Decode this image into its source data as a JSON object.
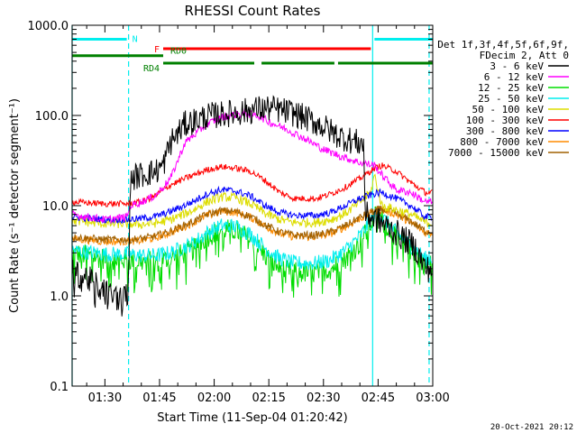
{
  "chart_data": {
    "type": "line",
    "title": "RHESSI Count Rates",
    "xlabel": "Start Time (11-Sep-04 01:20:42)",
    "ylabel": "Count Rate (s⁻¹ detector segment⁻¹)",
    "ylog": true,
    "ylim": [
      0.1,
      1000
    ],
    "xlim_minutes": [
      81,
      180
    ],
    "xticks": [
      {
        "t": 90,
        "label": "01:30"
      },
      {
        "t": 105,
        "label": "01:45"
      },
      {
        "t": 120,
        "label": "02:00"
      },
      {
        "t": 135,
        "label": "02:15"
      },
      {
        "t": 150,
        "label": "02:30"
      },
      {
        "t": 165,
        "label": "02:45"
      },
      {
        "t": 180,
        "label": "03:00"
      }
    ],
    "yticks": [
      {
        "v": 1000,
        "label": "1000.0"
      },
      {
        "v": 100,
        "label": "100.0"
      },
      {
        "v": 10,
        "label": "10.0"
      },
      {
        "v": 1,
        "label": "1.0"
      },
      {
        "v": 0.1,
        "label": "0.1"
      }
    ],
    "timestamp": "20-Oct-2021 20:12",
    "legend": {
      "header": [
        "Det 1f,3f,4f,5f,6f,9f,",
        "FDecim 2, Att 0"
      ],
      "placement": "right"
    },
    "series": [
      {
        "name": "3 - 6 keV",
        "color": "#000000",
        "t": [
          81,
          85,
          90,
          95,
          96.5,
          97,
          100,
          104,
          106,
          108,
          112,
          118,
          124,
          128,
          132,
          135,
          138,
          142,
          146,
          150,
          154,
          158,
          161,
          161.5,
          166,
          170,
          175,
          178
        ],
        "v": [
          1.8,
          1.6,
          1.1,
          0.9,
          1.2,
          20,
          22,
          24,
          28,
          50,
          80,
          98,
          105,
          110,
          118,
          120,
          115,
          105,
          90,
          75,
          60,
          52,
          48,
          8,
          6.5,
          5,
          3.5,
          2
        ]
      },
      {
        "name": "6 - 12 keV",
        "color": "#ff00ff",
        "t": [
          81,
          90,
          96,
          97,
          100,
          104,
          108,
          112,
          118,
          122,
          124,
          128,
          132,
          135,
          140,
          145,
          150,
          155,
          160,
          164,
          166,
          170,
          174,
          178
        ],
        "v": [
          8,
          7,
          7.5,
          10,
          11,
          13,
          20,
          50,
          80,
          95,
          100,
          105,
          100,
          85,
          70,
          55,
          42,
          35,
          30,
          28,
          22,
          15,
          14,
          11
        ]
      },
      {
        "name": "12 - 25 keV",
        "color": "#00dd00",
        "t": [
          81,
          90,
          96,
          100,
          104,
          108,
          114,
          118,
          122,
          126,
          130,
          134,
          138,
          142,
          148,
          152,
          156,
          160,
          164,
          165,
          166,
          170,
          174,
          178
        ],
        "v": [
          3,
          2.6,
          2.5,
          2.4,
          2.4,
          2.6,
          3.2,
          4.5,
          5.5,
          5.3,
          4.2,
          2.8,
          2,
          1.8,
          1.8,
          2,
          2.6,
          3.8,
          7.5,
          8,
          7,
          4.5,
          3.2,
          2.2
        ]
      },
      {
        "name": "25 - 50 keV",
        "color": "#00eeee",
        "t": [
          81,
          90,
          96,
          100,
          104,
          108,
          114,
          118,
          122,
          126,
          130,
          134,
          138,
          142,
          148,
          152,
          156,
          160,
          164,
          165,
          166,
          170,
          174,
          178
        ],
        "v": [
          3.2,
          2.9,
          2.9,
          2.8,
          2.8,
          3,
          3.8,
          5,
          6,
          5.9,
          4.8,
          3.4,
          2.6,
          2.3,
          2.3,
          2.5,
          3.2,
          4.6,
          7.8,
          8.5,
          7.5,
          5,
          3.6,
          2.6
        ]
      },
      {
        "name": "50 - 100 keV",
        "color": "#dddd00",
        "t": [
          81,
          90,
          96,
          100,
          104,
          108,
          114,
          118,
          122,
          126,
          130,
          134,
          138,
          142,
          148,
          152,
          156,
          160,
          163,
          164,
          166,
          170,
          174,
          178
        ],
        "v": [
          6.8,
          6.3,
          6.3,
          6.2,
          6.4,
          7,
          8.8,
          11,
          12.5,
          12.2,
          10.5,
          8.2,
          7,
          6.5,
          6.5,
          7,
          8.2,
          11,
          14,
          22,
          10,
          9,
          8,
          6.5
        ]
      },
      {
        "name": "100 - 300 keV",
        "color": "#ff0000",
        "t": [
          81,
          90,
          96,
          100,
          104,
          108,
          112,
          118,
          122,
          126,
          130,
          134,
          138,
          142,
          148,
          152,
          156,
          160,
          164,
          166,
          170,
          174,
          178
        ],
        "v": [
          11,
          10.5,
          10.5,
          11,
          13,
          17,
          20,
          25,
          27,
          26,
          24,
          19,
          14,
          12,
          12,
          13.5,
          16,
          20,
          26,
          28,
          24,
          18,
          14
        ]
      },
      {
        "name": "300 - 800 keV",
        "color": "#0000ff",
        "t": [
          81,
          90,
          96,
          100,
          104,
          108,
          114,
          118,
          122,
          126,
          130,
          134,
          138,
          142,
          148,
          152,
          156,
          160,
          164,
          166,
          170,
          174,
          178
        ],
        "v": [
          7.5,
          7,
          7,
          7.2,
          7.6,
          8.6,
          11,
          13.5,
          15,
          14.5,
          12.8,
          10,
          8.4,
          7.8,
          7.8,
          8.4,
          10,
          12,
          13.5,
          14,
          12,
          10,
          7.5
        ]
      },
      {
        "name": "800 - 7000 keV",
        "color": "#ff8c00",
        "t": [
          81,
          90,
          96,
          100,
          104,
          108,
          114,
          118,
          122,
          126,
          130,
          134,
          138,
          142,
          148,
          152,
          156,
          160,
          164,
          166,
          170,
          174,
          178
        ],
        "v": [
          4.3,
          4,
          4,
          4.1,
          4.4,
          5,
          6.4,
          7.8,
          8.6,
          8.4,
          7.4,
          5.9,
          4.9,
          4.5,
          4.5,
          4.9,
          5.8,
          7.2,
          8.6,
          9,
          8,
          6.5,
          5
        ]
      },
      {
        "name": "7000 - 15000 keV",
        "color": "#a06000",
        "t": [
          81,
          90,
          96,
          100,
          104,
          108,
          114,
          118,
          122,
          126,
          130,
          134,
          138,
          142,
          148,
          152,
          156,
          160,
          164,
          166,
          170,
          174,
          178
        ],
        "v": [
          4.5,
          4.2,
          4.2,
          4.3,
          4.6,
          5.2,
          6.6,
          8,
          8.8,
          8.6,
          7.6,
          6.1,
          5.1,
          4.7,
          4.7,
          5.1,
          6,
          7.4,
          8.8,
          9.2,
          8.2,
          6.7,
          5.2
        ]
      }
    ],
    "attenuator_bars": [
      {
        "label": "N",
        "color": "#00eeee",
        "segments": [
          [
            81,
            96
          ],
          [
            164,
            180
          ]
        ],
        "v": 700
      },
      {
        "label": "F",
        "color": "#ff0000",
        "segments": [
          [
            106,
            163
          ]
        ],
        "v": 550
      },
      {
        "label": "RD0",
        "color": "#008000",
        "segments": [
          [
            81,
            106
          ]
        ],
        "v": 460
      },
      {
        "label": "RD4",
        "color": "#008000",
        "segments": [
          [
            106,
            131
          ],
          [
            133,
            153
          ],
          [
            154,
            180
          ]
        ],
        "v": 380
      }
    ],
    "vertical_lines": [
      {
        "t": 81,
        "style": "solid",
        "color": "#00eeee"
      },
      {
        "t": 96.5,
        "style": "dashed",
        "color": "#00eeee"
      },
      {
        "t": 163.5,
        "style": "solid",
        "color": "#00eeee"
      },
      {
        "t": 179,
        "style": "dashed",
        "color": "#00eeee"
      }
    ]
  }
}
